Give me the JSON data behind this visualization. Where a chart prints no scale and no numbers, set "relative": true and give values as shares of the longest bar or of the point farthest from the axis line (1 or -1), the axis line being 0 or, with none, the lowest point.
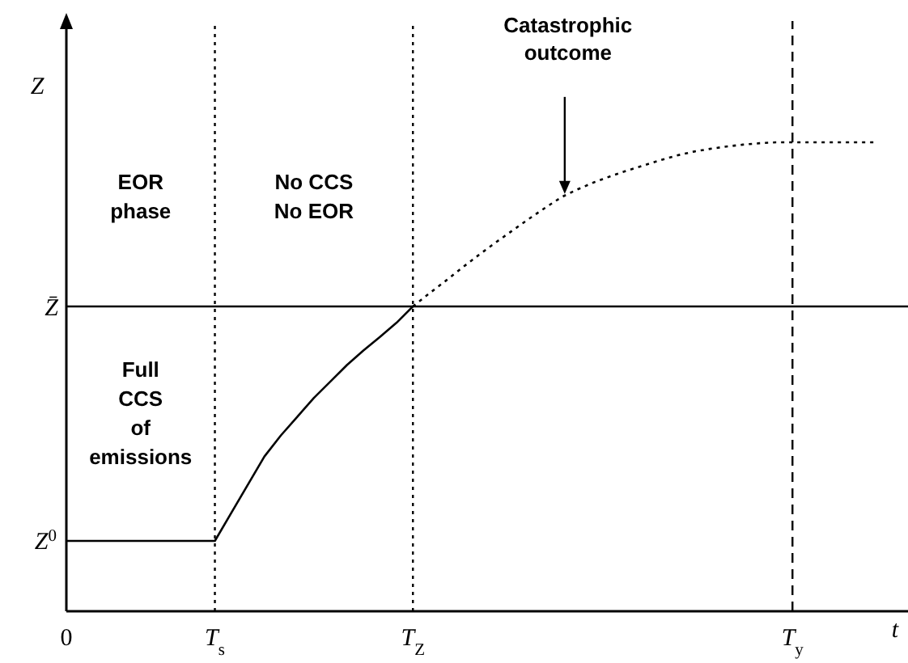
{
  "chart_data": {
    "type": "line",
    "relative": true,
    "xlabel": "t",
    "ylabel": "Z",
    "categories": [
      "0",
      null,
      null,
      null,
      null,
      null,
      null,
      null,
      null,
      "T$_{s}$",
      null,
      null,
      null,
      null,
      null,
      null,
      null,
      null,
      null,
      null,
      null,
      "T$_{Z}$",
      null,
      null,
      null,
      null,
      null,
      null,
      null,
      null,
      null,
      null,
      null,
      null,
      null,
      null,
      null,
      null,
      null,
      null,
      null,
      null,
      null,
      null,
      "T$_{y}$",
      null,
      null,
      null,
      null,
      null,
      null,
      null
    ],
    "series": [
      {
        "color": "#000000",
        "line_style": "solid",
        "values": [
          0.15,
          0.15,
          0.15,
          0.15,
          0.15,
          0.15,
          0.15,
          0.15,
          0.15,
          0.15,
          0.21,
          0.27,
          0.33,
          0.375,
          0.415,
          0.455,
          0.49,
          0.525,
          0.556,
          0.585,
          0.615,
          0.65,
          null,
          null,
          null,
          null,
          null,
          null,
          null,
          null,
          null,
          null,
          null,
          null,
          null,
          null,
          null,
          null,
          null,
          null,
          null,
          null,
          null,
          null,
          null,
          null,
          null,
          null,
          null,
          null,
          null,
          null
        ]
      },
      {
        "color": "#000000",
        "line_style": "dotted",
        "values": [
          null,
          null,
          null,
          null,
          null,
          null,
          null,
          null,
          null,
          null,
          null,
          null,
          null,
          null,
          null,
          null,
          null,
          null,
          null,
          null,
          null,
          0.65,
          0.678,
          0.705,
          0.733,
          0.76,
          0.786,
          0.811,
          0.836,
          0.86,
          0.883,
          0.9,
          0.915,
          0.928,
          0.94,
          0.951,
          0.962,
          0.972,
          0.98,
          0.986,
          0.991,
          0.995,
          0.998,
          1,
          1,
          1,
          1,
          1,
          1,
          1,
          null,
          null
        ]
      }
    ],
    "ref_lines": [
      {
        "axis": "y",
        "value": 0.65,
        "label": "Z̄",
        "color": "#000000",
        "line_style": "solid"
      },
      {
        "axis": "x",
        "value": "T$_{s}$",
        "color": "#000000",
        "line_style": "dotted"
      },
      {
        "axis": "x",
        "value": "T$_{Z}$",
        "color": "#000000",
        "line_style": "dotted"
      },
      {
        "axis": "x",
        "value": "T$_{y}$",
        "color": "#000000",
        "line_style": "dashed"
      }
    ],
    "annotations": [
      "EOR phase",
      "No CCS No EOR",
      "Full CCS of emissions",
      "Catastrophic outcome",
      "Z$^{0}$"
    ]
  }
}
